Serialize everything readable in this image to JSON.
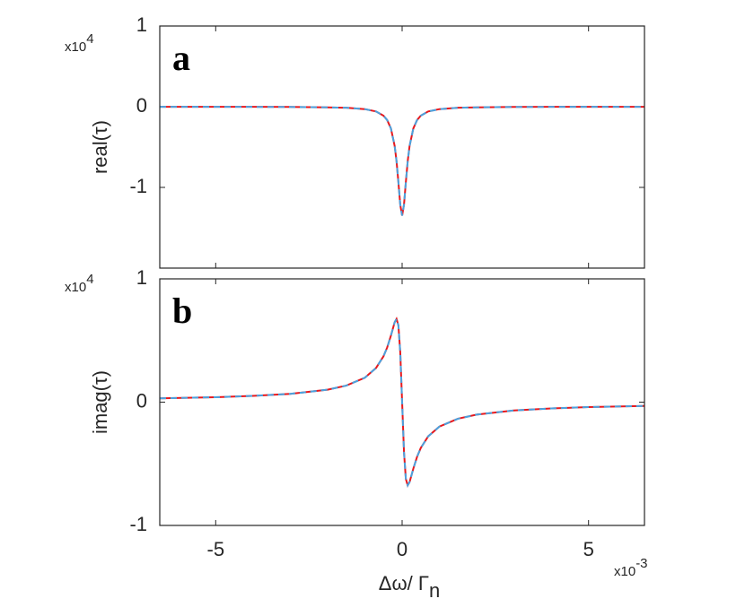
{
  "chart_data": [
    {
      "type": "line",
      "panel_label": "a",
      "ylabel": "real(τ)",
      "y_exponent": {
        "base": "x10",
        "power": "4"
      },
      "x": [
        -6.5,
        -5,
        -4,
        -3,
        -2,
        -1.5,
        -1,
        -0.7,
        -0.5,
        -0.4,
        -0.3,
        -0.2,
        -0.15,
        -0.1,
        -0.05,
        0,
        0.05,
        0.1,
        0.15,
        0.2,
        0.3,
        0.4,
        0.5,
        0.7,
        1,
        1.5,
        2,
        3,
        4,
        5,
        6.5
      ],
      "series": [
        {
          "color": "#e6191e",
          "dashed": false,
          "values": [
            -0.001,
            -0.001,
            -0.002,
            -0.003,
            -0.008,
            -0.013,
            -0.03,
            -0.059,
            -0.111,
            -0.166,
            -0.27,
            -0.486,
            -0.675,
            -0.935,
            -1.215,
            -1.35,
            -1.215,
            -0.935,
            -0.675,
            -0.486,
            -0.27,
            -0.166,
            -0.111,
            -0.059,
            -0.03,
            -0.013,
            -0.008,
            -0.003,
            -0.002,
            -0.001,
            -0.001
          ]
        },
        {
          "color": "#4aa3df",
          "dashed": true,
          "values": [
            -0.001,
            -0.001,
            -0.002,
            -0.003,
            -0.008,
            -0.013,
            -0.03,
            -0.059,
            -0.111,
            -0.166,
            -0.27,
            -0.486,
            -0.675,
            -0.935,
            -1.215,
            -1.35,
            -1.215,
            -0.935,
            -0.675,
            -0.486,
            -0.27,
            -0.166,
            -0.111,
            -0.059,
            -0.03,
            -0.013,
            -0.008,
            -0.003,
            -0.002,
            -0.001,
            -0.001
          ]
        }
      ],
      "xlim": [
        -6.5,
        6.5
      ],
      "xticks": [
        -5,
        0,
        5
      ],
      "show_xticklabels": false,
      "ylim": [
        -2,
        1
      ],
      "yticks": [
        -1,
        0,
        1
      ]
    },
    {
      "type": "line",
      "panel_label": "b",
      "ylabel": "imag(τ)",
      "y_exponent": {
        "base": "x10",
        "power": "4"
      },
      "xlabel": "Δω/ Γ",
      "xlabel_sub": "n",
      "x_exponent": {
        "base": "x10",
        "power": "-3"
      },
      "x": [
        -6.5,
        -5,
        -4,
        -3,
        -2,
        -1.5,
        -1,
        -0.7,
        -0.5,
        -0.4,
        -0.3,
        -0.2,
        -0.15,
        -0.1,
        -0.05,
        0,
        0.05,
        0.1,
        0.15,
        0.2,
        0.3,
        0.4,
        0.5,
        0.7,
        1,
        1.5,
        2,
        3,
        4,
        5,
        6.5
      ],
      "series": [
        {
          "color": "#e6191e",
          "dashed": false,
          "values": [
            0.031,
            0.04,
            0.051,
            0.067,
            0.101,
            0.134,
            0.198,
            0.277,
            0.372,
            0.444,
            0.54,
            0.648,
            0.675,
            0.623,
            0.405,
            0,
            -0.405,
            -0.623,
            -0.675,
            -0.648,
            -0.54,
            -0.444,
            -0.372,
            -0.277,
            -0.198,
            -0.134,
            -0.101,
            -0.067,
            -0.051,
            -0.04,
            -0.031
          ]
        },
        {
          "color": "#4aa3df",
          "dashed": true,
          "values": [
            0.031,
            0.04,
            0.051,
            0.067,
            0.101,
            0.134,
            0.198,
            0.277,
            0.372,
            0.444,
            0.54,
            0.648,
            0.675,
            0.623,
            0.405,
            0,
            -0.405,
            -0.623,
            -0.675,
            -0.648,
            -0.54,
            -0.444,
            -0.372,
            -0.277,
            -0.198,
            -0.134,
            -0.101,
            -0.067,
            -0.051,
            -0.04,
            -0.031
          ]
        }
      ],
      "xlim": [
        -6.5,
        6.5
      ],
      "xticks": [
        -5,
        0,
        5
      ],
      "show_xticklabels": true,
      "ylim": [
        -1,
        1
      ],
      "yticks": [
        -1,
        0,
        1
      ]
    }
  ]
}
